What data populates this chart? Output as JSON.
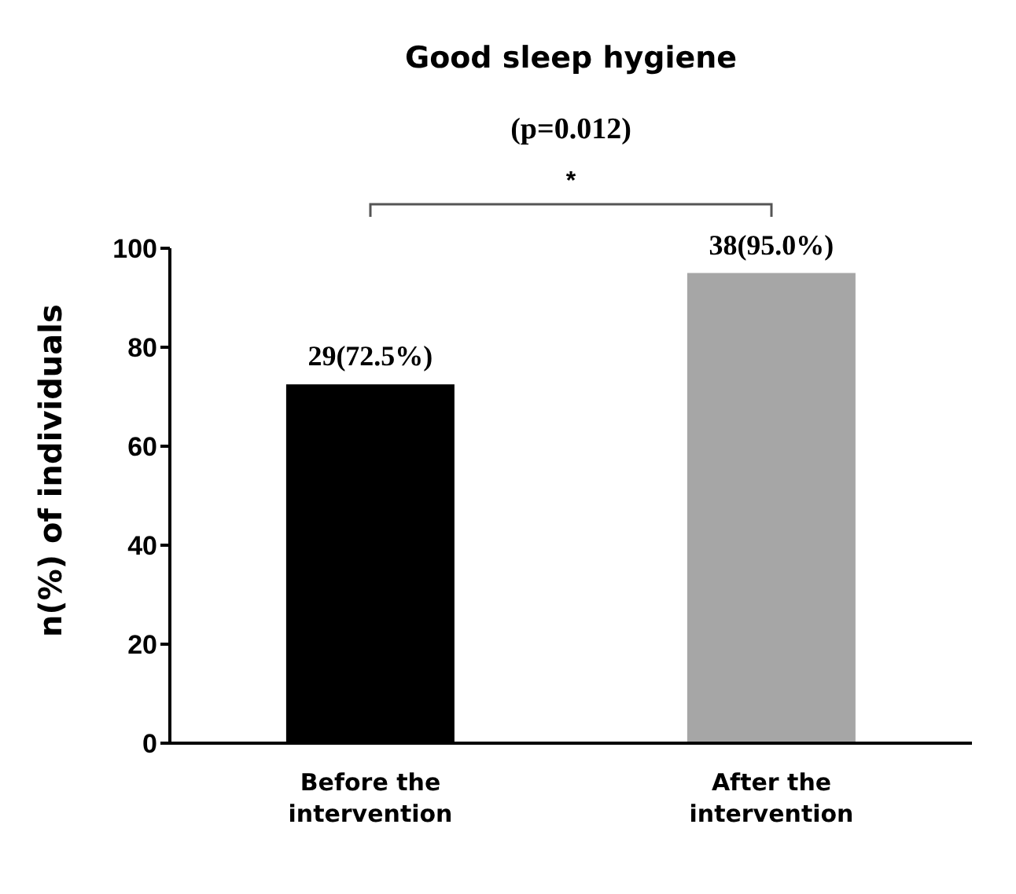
{
  "chart_data": {
    "type": "bar",
    "title": "Good sleep hygiene",
    "ylabel": "n(%) of individuals",
    "categories": [
      "Before the intervention",
      "After the intervention"
    ],
    "values": [
      72.5,
      95.0
    ],
    "colors": [
      "#000000",
      "#a6a6a6"
    ],
    "value_labels": [
      "29(72.5%)",
      "38(95.0%)"
    ],
    "annotations": [
      "(p=0.012)",
      "*"
    ],
    "ylim": [
      0,
      100
    ],
    "yticks": [
      0,
      20,
      40,
      60,
      80,
      100
    ],
    "grid": false,
    "legend": false
  }
}
